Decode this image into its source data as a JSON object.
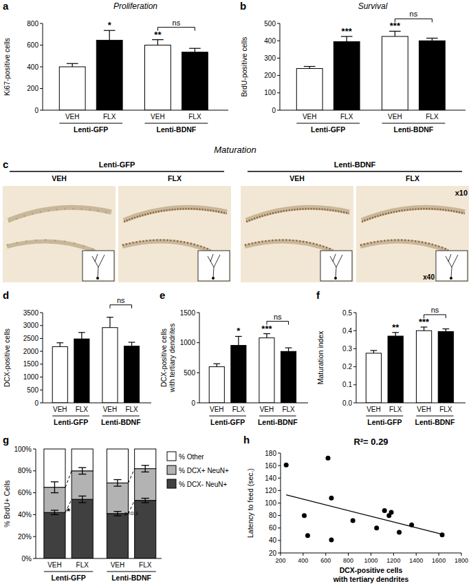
{
  "chart_data": [
    {
      "type": "bar",
      "label": "a",
      "title": "Proliferation",
      "ylabel": "Ki67-positive cells",
      "categories": [
        "VEH",
        "FLX",
        "VEH",
        "FLX"
      ],
      "groups": [
        "Lenti-GFP",
        "Lenti-BDNF"
      ],
      "values": [
        400,
        645,
        600,
        535
      ],
      "errors": [
        30,
        90,
        50,
        35
      ],
      "colors": [
        "#ffffff",
        "#000000",
        "#ffffff",
        "#000000"
      ],
      "significance": [
        null,
        "*",
        "**",
        null
      ],
      "comparisons": [
        {
          "text": "ns",
          "bars": [
            2,
            3
          ]
        }
      ],
      "ylim": [
        0,
        800
      ],
      "yticks": [
        0,
        200,
        400,
        600,
        800
      ]
    },
    {
      "type": "bar",
      "label": "b",
      "title": "Survival",
      "ylabel": "BrdU-positive cells",
      "categories": [
        "VEH",
        "FLX",
        "VEH",
        "FLX"
      ],
      "groups": [
        "Lenti-GFP",
        "Lenti-BDNF"
      ],
      "values": [
        240,
        395,
        425,
        400
      ],
      "errors": [
        12,
        30,
        30,
        15
      ],
      "colors": [
        "#ffffff",
        "#000000",
        "#ffffff",
        "#000000"
      ],
      "significance": [
        null,
        "***",
        "***",
        null
      ],
      "comparisons": [
        {
          "text": "ns",
          "bars": [
            2,
            3
          ]
        }
      ],
      "ylim": [
        0,
        500
      ],
      "yticks": [
        0,
        100,
        200,
        300,
        400,
        500
      ]
    },
    {
      "type": "bar",
      "label": "d",
      "ylabel": "DCX-positive cells",
      "categories": [
        "VEH",
        "FLX",
        "VEH",
        "FLX"
      ],
      "groups": [
        "Lenti-GFP",
        "Lenti-BDNF"
      ],
      "values": [
        2180,
        2480,
        2920,
        2200
      ],
      "errors": [
        150,
        250,
        400,
        150
      ],
      "colors": [
        "#ffffff",
        "#000000",
        "#ffffff",
        "#000000"
      ],
      "significance": [
        null,
        null,
        null,
        null
      ],
      "comparisons": [
        {
          "text": "ns",
          "bars": [
            2,
            3
          ]
        }
      ],
      "ylim": [
        0,
        3500
      ],
      "yticks": [
        0,
        500,
        1000,
        1500,
        2000,
        2500,
        3000,
        3500
      ]
    },
    {
      "type": "bar",
      "label": "e",
      "ylabel": [
        "DCX-positive cells",
        "with tertiary dendrites"
      ],
      "categories": [
        "VEH",
        "FLX",
        "VEH",
        "FLX"
      ],
      "groups": [
        "Lenti-GFP",
        "Lenti-BDNF"
      ],
      "values": [
        600,
        955,
        1080,
        855
      ],
      "errors": [
        50,
        150,
        70,
        60
      ],
      "colors": [
        "#ffffff",
        "#000000",
        "#ffffff",
        "#000000"
      ],
      "significance": [
        null,
        "*",
        "***",
        null
      ],
      "comparisons": [
        {
          "text": "ns",
          "bars": [
            2,
            3
          ]
        }
      ],
      "ylim": [
        0,
        1500
      ],
      "yticks": [
        0,
        500,
        1000,
        1500
      ]
    },
    {
      "type": "bar",
      "label": "f",
      "ylabel": "Maturation index",
      "categories": [
        "VEH",
        "FLX",
        "VEH",
        "FLX"
      ],
      "groups": [
        "Lenti-GFP",
        "Lenti-BDNF"
      ],
      "values": [
        0.275,
        0.37,
        0.4,
        0.395
      ],
      "errors": [
        0.015,
        0.02,
        0.02,
        0.015
      ],
      "colors": [
        "#ffffff",
        "#000000",
        "#ffffff",
        "#000000"
      ],
      "significance": [
        null,
        "**",
        "***",
        null
      ],
      "comparisons": [
        {
          "text": "ns",
          "bars": [
            2,
            3
          ]
        }
      ],
      "ylim": [
        0,
        0.5
      ],
      "yticks": [
        {
          "value": 0,
          "label": "0.0"
        },
        0.1,
        0.2,
        0.3,
        0.4,
        0.5
      ]
    },
    {
      "type": "bar",
      "label": "g",
      "stacked": true,
      "ylabel": "% BrdU+ Cells",
      "legend": "right",
      "categories": [
        "VEH",
        "FLX",
        "VEH",
        "FLX"
      ],
      "groups": [
        "Lenti-GFP",
        "Lenti-BDNF"
      ],
      "series": [
        {
          "name": "% DCX- NeuN+",
          "color": "#404040",
          "values": [
            42,
            54,
            41,
            53
          ],
          "errors": [
            2,
            3,
            2,
            2
          ]
        },
        {
          "name": "% DCX+ NeuN+",
          "color": "#b3b3b3",
          "values": [
            23,
            26,
            28,
            29
          ],
          "errors": [
            5,
            3,
            3,
            3
          ]
        },
        {
          "name": "% Other",
          "color": "#ffffff",
          "values": [
            35,
            20,
            31,
            18
          ]
        }
      ],
      "group_significance": [
        "*",
        "p<0.1"
      ],
      "ylim": [
        0,
        100
      ],
      "yticks": [
        {
          "value": 0,
          "label": "0%"
        },
        {
          "value": 20,
          "label": "20%"
        },
        {
          "value": 40,
          "label": "40%"
        },
        {
          "value": 60,
          "label": "60%"
        },
        {
          "value": 80,
          "label": "80%"
        },
        {
          "value": 100,
          "label": "100%"
        }
      ]
    },
    {
      "type": "scatter",
      "label": "h",
      "annotation": "R²= 0.29",
      "xlabel": [
        "DCX-positive cells",
        "with tertiary dendrites"
      ],
      "ylabel": "Latency to feed (sec.)",
      "x": [
        250,
        410,
        440,
        620,
        650,
        650,
        840,
        1050,
        1120,
        1160,
        1180,
        1250,
        1360,
        1630
      ],
      "values": [
        161,
        80,
        48,
        172,
        108,
        41,
        72,
        60,
        88,
        80,
        85,
        53,
        65,
        49
      ],
      "trend_line": {
        "x": [
          250,
          1630
        ],
        "y": [
          113,
          50
        ]
      },
      "color": "#000000",
      "marker": "circle",
      "xlim": [
        200,
        1800
      ],
      "xticks": [
        200,
        400,
        600,
        800,
        1000,
        1200,
        1400,
        1600,
        1800
      ],
      "ylim": [
        20,
        180
      ],
      "yticks": [
        20,
        40,
        60,
        80,
        100,
        120,
        140,
        160,
        180
      ]
    }
  ],
  "micrographs": {
    "label": "c",
    "title": "Maturation",
    "groups": [
      {
        "name": "Lenti-GFP",
        "panels": [
          "VEH",
          "FLX"
        ]
      },
      {
        "name": "Lenti-BDNF",
        "panels": [
          "VEH",
          "FLX"
        ]
      }
    ],
    "magnification": "x10",
    "inset_magnification": "x40"
  }
}
